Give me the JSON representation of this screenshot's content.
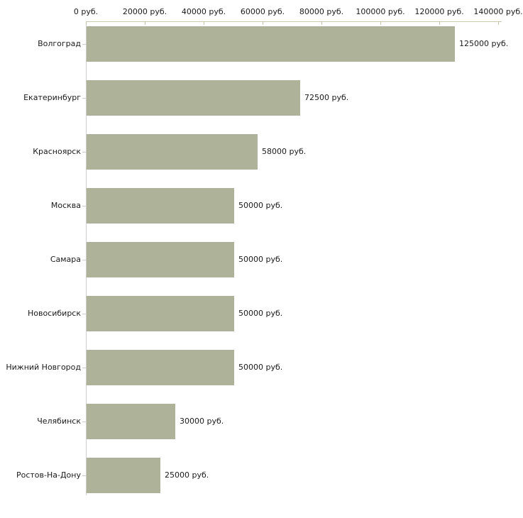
{
  "chart_data": {
    "type": "bar",
    "orientation": "horizontal",
    "title": "",
    "xlabel": "",
    "ylabel": "",
    "grid": false,
    "legend": false,
    "axis_position": "top",
    "categories": [
      "Волгоград",
      "Екатеринбург",
      "Красноярск",
      "Москва",
      "Самара",
      "Новосибирск",
      "Нижний Новгород",
      "Челябинск",
      "Ростов-На-Дону"
    ],
    "values": [
      125000,
      72500,
      58000,
      50000,
      50000,
      50000,
      50000,
      30000,
      25000
    ],
    "value_labels": [
      "125000 руб.",
      "72500 руб.",
      "58000 руб.",
      "50000 руб.",
      "50000 руб.",
      "50000 руб.",
      "50000 руб.",
      "30000 руб.",
      "25000 руб."
    ],
    "x_tick_values": [
      0,
      20000,
      40000,
      60000,
      80000,
      100000,
      120000,
      140000
    ],
    "x_tick_labels": [
      "0 руб.",
      "20000 руб.",
      "40000 руб.",
      "60000 руб.",
      "80000 руб.",
      "100000 руб.",
      "120000 руб.",
      "140000 руб."
    ],
    "xlim": [
      0,
      140000
    ],
    "colors": {
      "bar_fill": "#adb298",
      "x_axis_line": "#ccccb3",
      "y_axis_line": "#cccccc",
      "tick_mark": "#c6c6a4",
      "text": "#1a1a1a",
      "background": "#ffffff"
    }
  }
}
